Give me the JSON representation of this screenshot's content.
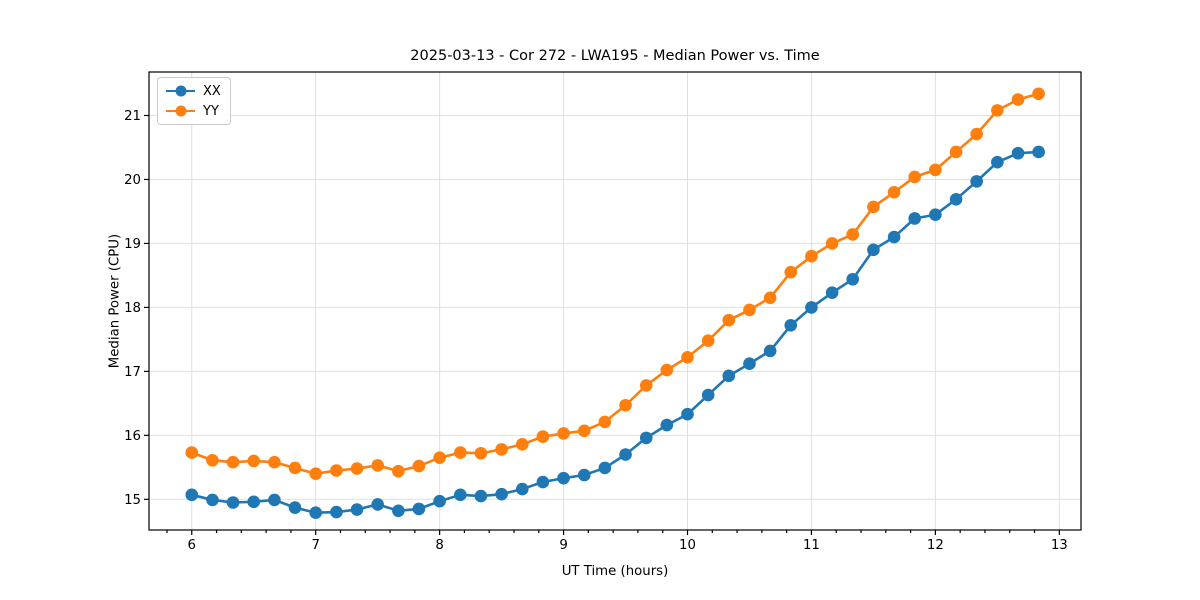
{
  "chart_data": {
    "type": "line",
    "title": "2025-03-13 - Cor 272 - LWA195 - Median Power vs. Time",
    "xlabel": "UT Time (hours)",
    "ylabel": "Median Power (CPU)",
    "x": [
      6.0,
      6.167,
      6.333,
      6.5,
      6.667,
      6.833,
      7.0,
      7.167,
      7.333,
      7.5,
      7.667,
      7.833,
      8.0,
      8.167,
      8.333,
      8.5,
      8.667,
      8.833,
      9.0,
      9.167,
      9.333,
      9.5,
      9.667,
      9.833,
      10.0,
      10.167,
      10.333,
      10.5,
      10.667,
      10.833,
      11.0,
      11.167,
      11.333,
      11.5,
      11.667,
      11.833,
      12.0,
      12.167,
      12.333,
      12.5,
      12.667,
      12.833
    ],
    "series": [
      {
        "name": "XX",
        "color": "#1f77b4",
        "values": [
          15.07,
          14.99,
          14.95,
          14.96,
          14.99,
          14.87,
          14.79,
          14.8,
          14.84,
          14.92,
          14.82,
          14.85,
          14.97,
          15.07,
          15.05,
          15.08,
          15.16,
          15.27,
          15.33,
          15.38,
          15.49,
          15.7,
          15.96,
          16.16,
          16.33,
          16.63,
          16.93,
          17.12,
          17.32,
          17.72,
          18.0,
          18.23,
          18.44,
          18.9,
          19.1,
          19.39,
          19.45,
          19.69,
          19.97,
          20.27,
          20.41,
          20.43
        ]
      },
      {
        "name": "YY",
        "color": "#ff7f0e",
        "values": [
          15.73,
          15.61,
          15.58,
          15.6,
          15.58,
          15.49,
          15.4,
          15.45,
          15.48,
          15.53,
          15.44,
          15.52,
          15.65,
          15.73,
          15.72,
          15.78,
          15.86,
          15.98,
          16.03,
          16.07,
          16.21,
          16.47,
          16.78,
          17.02,
          17.22,
          17.48,
          17.8,
          17.96,
          18.15,
          18.55,
          18.8,
          19.0,
          19.14,
          19.57,
          19.8,
          20.04,
          20.15,
          20.43,
          20.71,
          21.08,
          21.25,
          21.34
        ]
      }
    ],
    "xlim": [
      5.655,
      13.175
    ],
    "ylim": [
      14.52,
      21.68
    ],
    "xticks": [
      6,
      7,
      8,
      9,
      10,
      11,
      12,
      13
    ],
    "yticks": [
      15,
      16,
      17,
      18,
      19,
      20,
      21
    ],
    "x_minor_step": 0.2,
    "grid": true,
    "grid_color": "#e0e0e0",
    "spine_color": "#000000",
    "legend_position": "upper left",
    "marker": "circle"
  }
}
